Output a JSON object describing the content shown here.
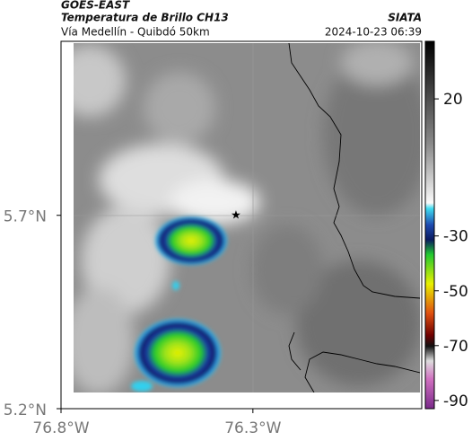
{
  "header": {
    "satellite": "GOES-EAST",
    "product": "Temperatura de Brillo CH13",
    "source": "SIATA",
    "region": "Vía Medellín - Quibdó 50km",
    "timestamp": "2024-10-23 06:39"
  },
  "map": {
    "xlim": [
      -76.8,
      -75.86
    ],
    "ylim": [
      5.2,
      6.15
    ],
    "xticks": [
      {
        "value": -76.8,
        "label": "76.8°W"
      },
      {
        "value": -76.3,
        "label": "76.3°W"
      }
    ],
    "yticks": [
      {
        "value": 5.7,
        "label": "5.7°N"
      },
      {
        "value": 5.2,
        "label": "5.2°N"
      }
    ]
  },
  "colorbar": {
    "clim": [
      -93,
      41
    ],
    "ticks": [
      20,
      -30,
      -50,
      -70,
      -90
    ]
  }
}
